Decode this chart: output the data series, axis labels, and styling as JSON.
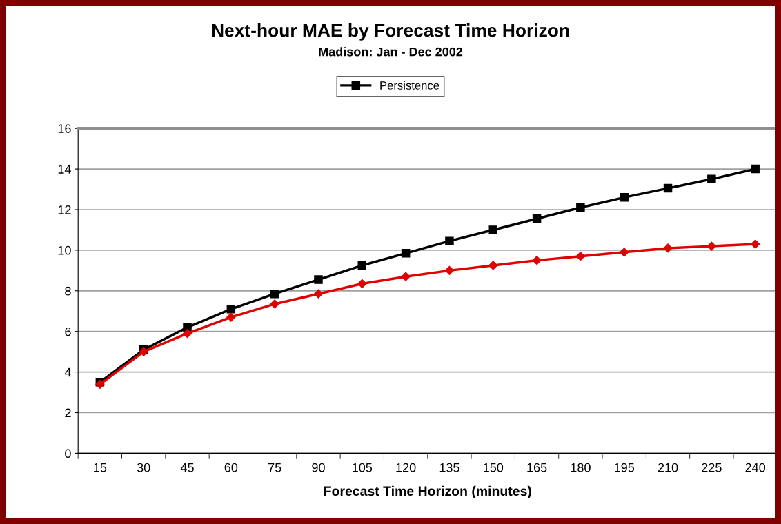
{
  "chart_data": {
    "type": "line",
    "title": "Next-hour MAE by Forecast Time Horizon",
    "subtitle": "Madison: Jan - Dec 2002",
    "xlabel": "Forecast Time Horizon (minutes)",
    "categories": [
      "15",
      "30",
      "45",
      "60",
      "75",
      "90",
      "105",
      "120",
      "135",
      "150",
      "165",
      "180",
      "195",
      "210",
      "225",
      "240"
    ],
    "series": [
      {
        "color": "#e00000",
        "marker": "diamond",
        "values": [
          3.4,
          5.0,
          5.9,
          6.7,
          7.35,
          7.85,
          8.35,
          8.7,
          9.0,
          9.25,
          9.5,
          9.7,
          9.9,
          10.1,
          10.2,
          10.3
        ]
      },
      {
        "name": "Persistence",
        "color": "#000000",
        "marker": "square",
        "values": [
          3.5,
          5.1,
          6.2,
          7.1,
          7.85,
          8.55,
          9.25,
          9.85,
          10.45,
          11.0,
          11.55,
          12.1,
          12.6,
          13.05,
          13.5,
          14.0
        ]
      }
    ],
    "ylim": [
      0,
      16
    ],
    "yticks": [
      0,
      2,
      4,
      6,
      8,
      10,
      12,
      14,
      16
    ],
    "grid": "y",
    "legend": "top",
    "line_style": "solid"
  }
}
